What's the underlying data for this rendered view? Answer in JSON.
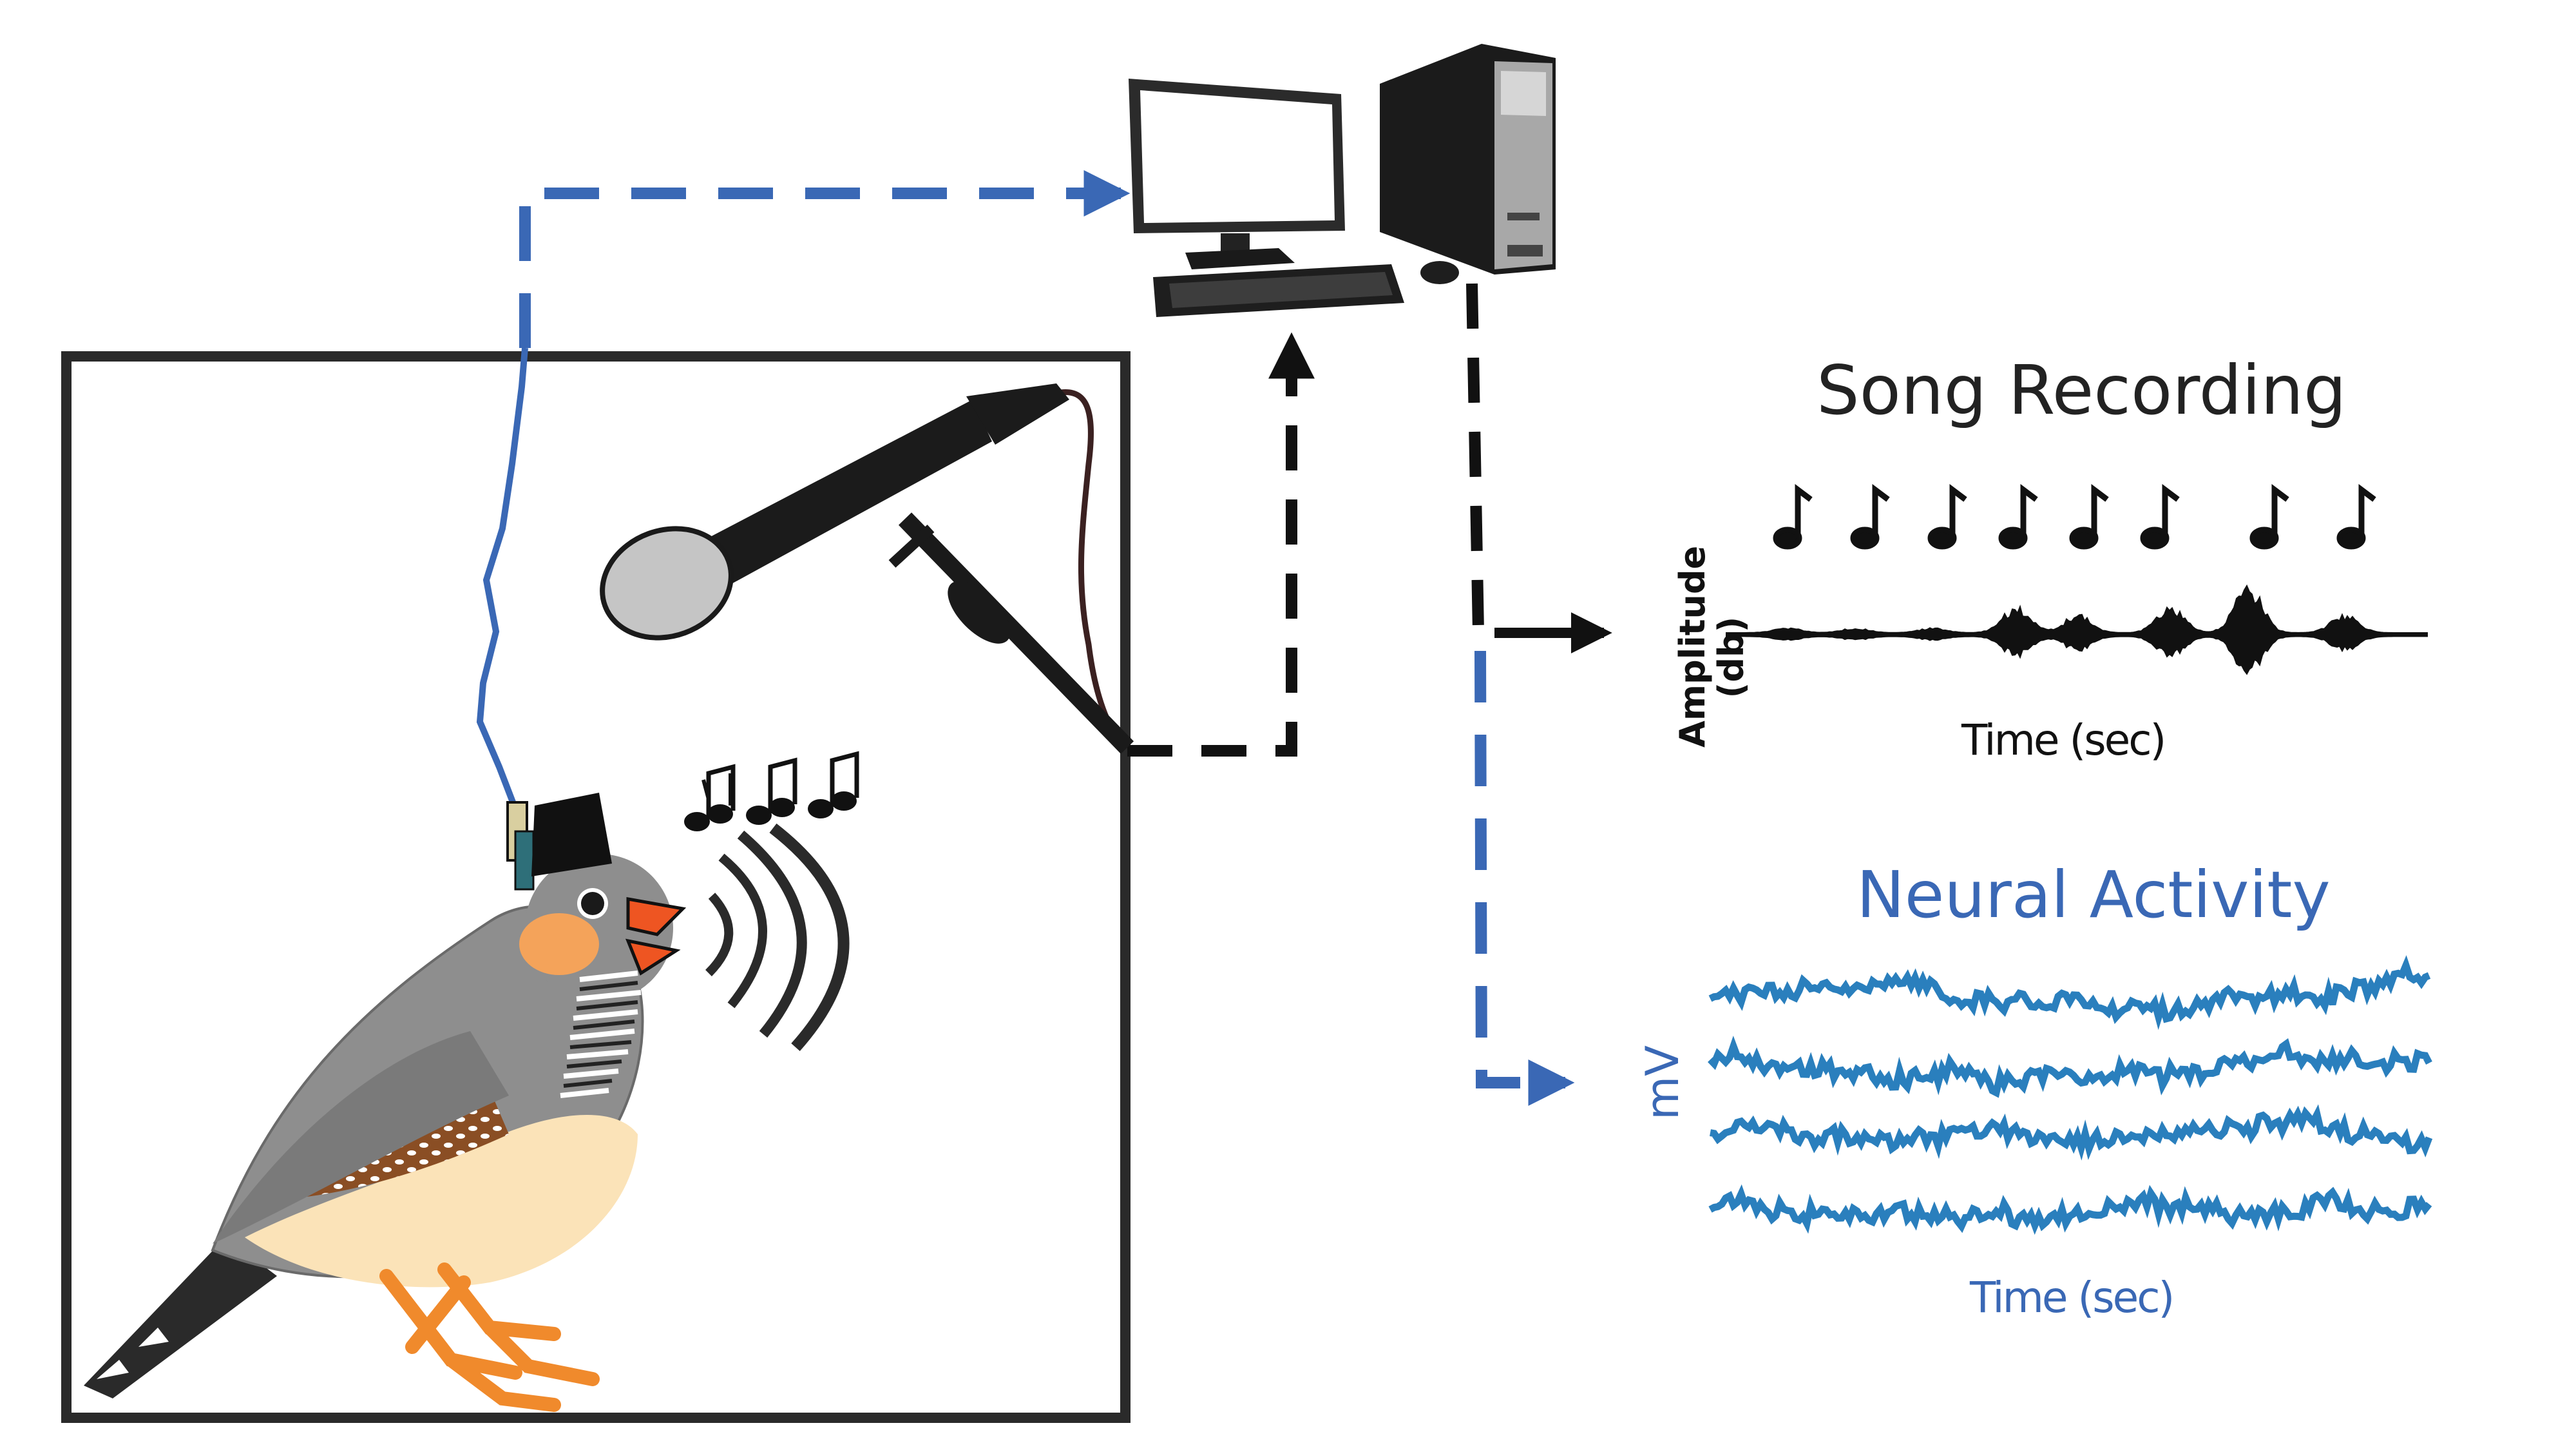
{
  "labels": {
    "song_recording_title": "Song Recording",
    "song_amplitude_axis": "Amplitude\n(db)",
    "song_time_axis": "Time (sec)",
    "neural_activity_title": "Neural Activity",
    "neural_voltage_axis": "mV",
    "neural_time_axis": "Time (sec)"
  },
  "colors": {
    "signal_blue": "#3a68b5",
    "trace_blue": "#2a7fbd",
    "black": "#111111",
    "bird_gray": "#8e8e8e",
    "bird_belly": "#fbe3b8",
    "bird_cheek": "#f4a35a",
    "bird_flank": "#8a4e24",
    "beak_orange": "#ee5522",
    "feet_orange": "#f08a2c"
  },
  "icons": [
    "zebra-finch-icon",
    "microphone-icon",
    "computer-monitor-icon",
    "computer-tower-icon",
    "keyboard-icon",
    "mouse-icon",
    "music-notes-icon",
    "sound-wave-icon",
    "headstage-icon"
  ]
}
